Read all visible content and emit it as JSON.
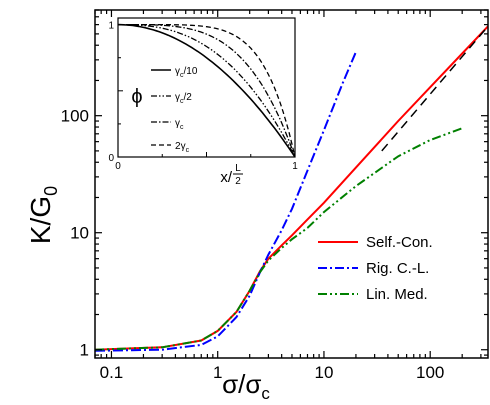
{
  "chart_data": [
    {
      "id": "main",
      "type": "line",
      "x_scale": "log",
      "y_scale": "log",
      "xlim": [
        0.07,
        350
      ],
      "ylim": [
        0.85,
        800
      ],
      "x_ticks": [
        {
          "value": 0.1,
          "label": "0.1"
        },
        {
          "value": 1,
          "label": "1"
        },
        {
          "value": 10,
          "label": "10"
        },
        {
          "value": 100,
          "label": "100"
        }
      ],
      "y_ticks": [
        {
          "value": 1,
          "label": "1"
        },
        {
          "value": 10,
          "label": "10"
        },
        {
          "value": 100,
          "label": "100"
        }
      ],
      "xlabel": {
        "main": "σ/σ",
        "sub": "c"
      },
      "ylabel": {
        "main": "K/G",
        "sub": "0"
      },
      "legend_position": "bottom-right",
      "series": [
        {
          "name": "Self.-Con.",
          "color": "#ff0000",
          "dash": "solid",
          "x": [
            0.07,
            0.3,
            0.7,
            1.0,
            1.5,
            2.0,
            2.5,
            3.0,
            4.0,
            5.0,
            7.0,
            10,
            20,
            50,
            100,
            200,
            350
          ],
          "y": [
            1.0,
            1.05,
            1.2,
            1.45,
            2.1,
            3.2,
            4.7,
            6.0,
            7.8,
            9.5,
            13,
            18,
            36,
            90,
            175,
            340,
            580
          ]
        },
        {
          "name": "Rig. C.-L.",
          "color": "#0000ff",
          "dash": "dashdot",
          "x": [
            0.07,
            0.3,
            0.7,
            1.0,
            1.5,
            2.0,
            2.5,
            3.0,
            4.0,
            5.0,
            7.0,
            10,
            15,
            20
          ],
          "y": [
            0.98,
            1.0,
            1.1,
            1.3,
            1.9,
            2.9,
            4.6,
            6.5,
            10.5,
            16,
            34,
            75,
            190,
            350
          ]
        },
        {
          "name": "Lin. Med.",
          "color": "#008000",
          "dash": "dashdotdot",
          "x": [
            0.07,
            0.3,
            0.7,
            1.0,
            1.5,
            2.0,
            2.5,
            3.0,
            4.0,
            5.0,
            7.0,
            10,
            20,
            50,
            100,
            200
          ],
          "y": [
            1.0,
            1.05,
            1.2,
            1.45,
            2.1,
            3.2,
            4.6,
            5.8,
            7.4,
            8.8,
            11,
            15,
            25,
            45,
            62,
            78
          ]
        },
        {
          "name": "",
          "color": "#000000",
          "dash": "dashed",
          "x": [
            35,
            350
          ],
          "y": [
            50,
            580
          ]
        }
      ]
    },
    {
      "id": "inset",
      "type": "line",
      "xlim": [
        0,
        1
      ],
      "ylim": [
        0,
        1.05
      ],
      "x_ticks": [
        {
          "value": 0,
          "label": "0"
        },
        {
          "value": 1,
          "label": "1"
        }
      ],
      "y_ticks": [
        {
          "value": 0,
          "label": "0"
        },
        {
          "value": 1,
          "label": "1"
        }
      ],
      "xlabel": {
        "main": "x/",
        "num": "L",
        "den": "2"
      },
      "ylabel": "ϕ",
      "series": [
        {
          "name": "γc/10",
          "label_main": "γ",
          "label_sub": "c",
          "label_suffix": "/10",
          "label_prefix": "",
          "dash": "solid",
          "n": 2.0
        },
        {
          "name": "γc/2",
          "label_main": "γ",
          "label_sub": "c",
          "label_suffix": "/2",
          "label_prefix": "",
          "dash": "dashdotdot",
          "n": 2.6
        },
        {
          "name": "γc",
          "label_main": "γ",
          "label_sub": "c",
          "label_suffix": "",
          "label_prefix": "",
          "dash": "dashdot",
          "n": 3.8
        },
        {
          "name": "2γc",
          "label_main": "γ",
          "label_sub": "c",
          "label_suffix": "",
          "label_prefix": "2",
          "dash": "dashed",
          "n": 6.0
        }
      ]
    }
  ]
}
